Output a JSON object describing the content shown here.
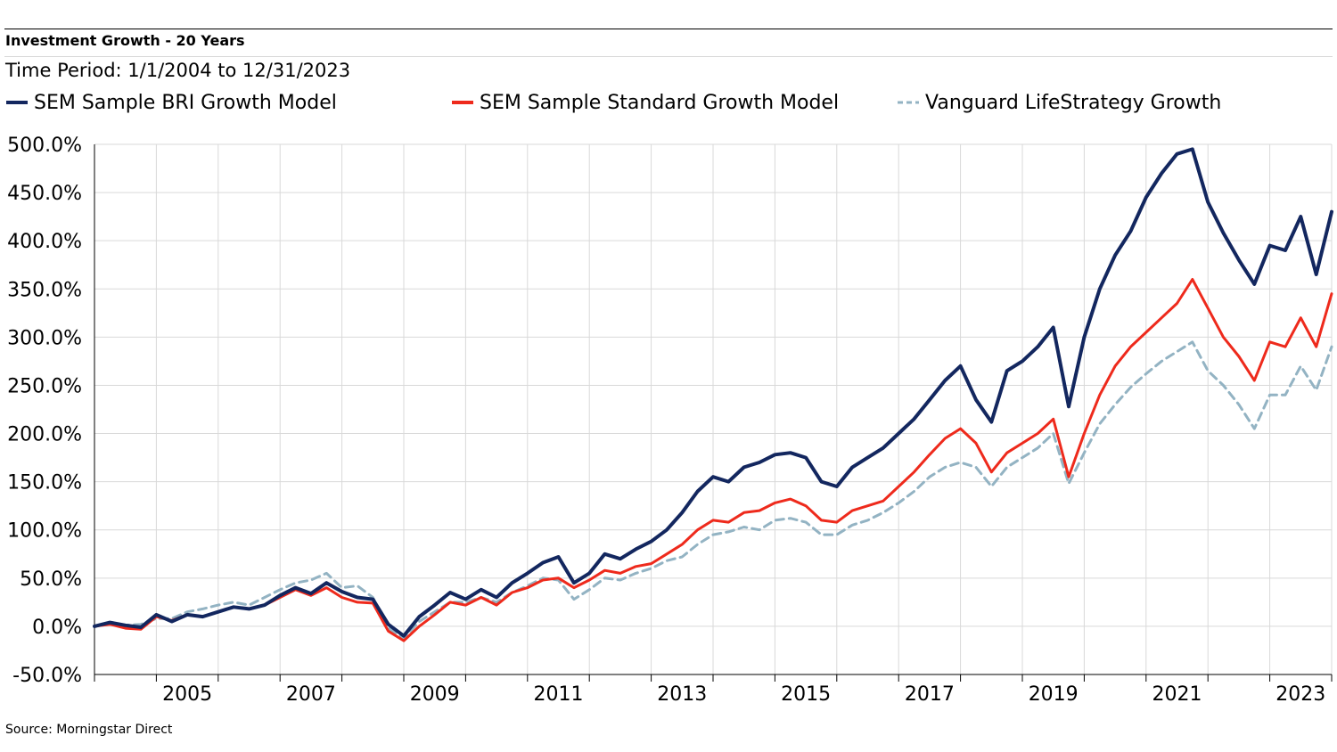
{
  "title": "Investment Growth - 20 Years",
  "subtitle": "Time Period: 1/1/2004 to 12/31/2023",
  "source": "Source: Morningstar Direct",
  "legend": [
    {
      "label": "SEM Sample BRI Growth Model",
      "color": "#13275f",
      "style": "solid"
    },
    {
      "label": "SEM Sample Standard Growth Model",
      "color": "#ee2a1c",
      "style": "solid"
    },
    {
      "label": "Vanguard LifeStrategy Growth",
      "color": "#93b3c3",
      "style": "dashed"
    }
  ],
  "chart_data": {
    "type": "line",
    "x_unit": "year",
    "xlim": [
      2004.0,
      2024.0
    ],
    "ylim": [
      -50,
      500
    ],
    "y_ticks": [
      -50,
      0,
      50,
      100,
      150,
      200,
      250,
      300,
      350,
      400,
      450,
      500
    ],
    "y_tick_labels": [
      "-50.0%",
      "0.0%",
      "50.0%",
      "100.0%",
      "150.0%",
      "200.0%",
      "250.0%",
      "300.0%",
      "350.0%",
      "400.0%",
      "450.0%",
      "500.0%"
    ],
    "x_ticks": [
      2005,
      2007,
      2009,
      2011,
      2013,
      2015,
      2017,
      2019,
      2021,
      2023
    ],
    "grid": true,
    "legend_position": "top",
    "series": [
      {
        "name": "SEM Sample BRI Growth Model",
        "color": "#13275f",
        "dash": false,
        "points": [
          [
            2004.0,
            0
          ],
          [
            2004.25,
            4
          ],
          [
            2004.5,
            1
          ],
          [
            2004.75,
            -1
          ],
          [
            2005.0,
            12
          ],
          [
            2005.25,
            5
          ],
          [
            2005.5,
            12
          ],
          [
            2005.75,
            10
          ],
          [
            2006.0,
            15
          ],
          [
            2006.25,
            20
          ],
          [
            2006.5,
            18
          ],
          [
            2006.75,
            22
          ],
          [
            2007.0,
            32
          ],
          [
            2007.25,
            40
          ],
          [
            2007.5,
            34
          ],
          [
            2007.75,
            45
          ],
          [
            2008.0,
            36
          ],
          [
            2008.25,
            30
          ],
          [
            2008.5,
            28
          ],
          [
            2008.75,
            2
          ],
          [
            2009.0,
            -10
          ],
          [
            2009.25,
            10
          ],
          [
            2009.5,
            22
          ],
          [
            2009.75,
            35
          ],
          [
            2010.0,
            28
          ],
          [
            2010.25,
            38
          ],
          [
            2010.5,
            30
          ],
          [
            2010.75,
            45
          ],
          [
            2011.0,
            55
          ],
          [
            2011.25,
            66
          ],
          [
            2011.5,
            72
          ],
          [
            2011.75,
            45
          ],
          [
            2012.0,
            55
          ],
          [
            2012.25,
            75
          ],
          [
            2012.5,
            70
          ],
          [
            2012.75,
            80
          ],
          [
            2013.0,
            88
          ],
          [
            2013.25,
            100
          ],
          [
            2013.5,
            118
          ],
          [
            2013.75,
            140
          ],
          [
            2014.0,
            155
          ],
          [
            2014.25,
            150
          ],
          [
            2014.5,
            165
          ],
          [
            2014.75,
            170
          ],
          [
            2015.0,
            178
          ],
          [
            2015.25,
            180
          ],
          [
            2015.5,
            175
          ],
          [
            2015.75,
            150
          ],
          [
            2016.0,
            145
          ],
          [
            2016.25,
            165
          ],
          [
            2016.5,
            175
          ],
          [
            2016.75,
            185
          ],
          [
            2017.0,
            200
          ],
          [
            2017.25,
            215
          ],
          [
            2017.5,
            235
          ],
          [
            2017.75,
            255
          ],
          [
            2018.0,
            270
          ],
          [
            2018.25,
            235
          ],
          [
            2018.5,
            212
          ],
          [
            2018.75,
            265
          ],
          [
            2019.0,
            275
          ],
          [
            2019.25,
            290
          ],
          [
            2019.5,
            310
          ],
          [
            2019.75,
            228
          ],
          [
            2020.0,
            300
          ],
          [
            2020.25,
            350
          ],
          [
            2020.5,
            385
          ],
          [
            2020.75,
            410
          ],
          [
            2021.0,
            445
          ],
          [
            2021.25,
            470
          ],
          [
            2021.5,
            490
          ],
          [
            2021.75,
            495
          ],
          [
            2022.0,
            440
          ],
          [
            2022.25,
            408
          ],
          [
            2022.5,
            380
          ],
          [
            2022.75,
            355
          ],
          [
            2023.0,
            395
          ],
          [
            2023.25,
            390
          ],
          [
            2023.5,
            425
          ],
          [
            2023.75,
            365
          ],
          [
            2024.0,
            430
          ]
        ]
      },
      {
        "name": "SEM Sample Standard Growth Model",
        "color": "#ee2a1c",
        "dash": false,
        "points": [
          [
            2004.0,
            0
          ],
          [
            2004.25,
            2
          ],
          [
            2004.5,
            -2
          ],
          [
            2004.75,
            -3
          ],
          [
            2005.0,
            10
          ],
          [
            2005.25,
            6
          ],
          [
            2005.5,
            12
          ],
          [
            2005.75,
            10
          ],
          [
            2006.0,
            15
          ],
          [
            2006.25,
            20
          ],
          [
            2006.5,
            18
          ],
          [
            2006.75,
            22
          ],
          [
            2007.0,
            30
          ],
          [
            2007.25,
            38
          ],
          [
            2007.5,
            32
          ],
          [
            2007.75,
            40
          ],
          [
            2008.0,
            30
          ],
          [
            2008.25,
            25
          ],
          [
            2008.5,
            24
          ],
          [
            2008.75,
            -5
          ],
          [
            2009.0,
            -15
          ],
          [
            2009.25,
            0
          ],
          [
            2009.5,
            12
          ],
          [
            2009.75,
            25
          ],
          [
            2010.0,
            22
          ],
          [
            2010.25,
            30
          ],
          [
            2010.5,
            22
          ],
          [
            2010.75,
            35
          ],
          [
            2011.0,
            40
          ],
          [
            2011.25,
            48
          ],
          [
            2011.5,
            50
          ],
          [
            2011.75,
            40
          ],
          [
            2012.0,
            48
          ],
          [
            2012.25,
            58
          ],
          [
            2012.5,
            55
          ],
          [
            2012.75,
            62
          ],
          [
            2013.0,
            65
          ],
          [
            2013.25,
            75
          ],
          [
            2013.5,
            85
          ],
          [
            2013.75,
            100
          ],
          [
            2014.0,
            110
          ],
          [
            2014.25,
            108
          ],
          [
            2014.5,
            118
          ],
          [
            2014.75,
            120
          ],
          [
            2015.0,
            128
          ],
          [
            2015.25,
            132
          ],
          [
            2015.5,
            125
          ],
          [
            2015.75,
            110
          ],
          [
            2016.0,
            108
          ],
          [
            2016.25,
            120
          ],
          [
            2016.5,
            125
          ],
          [
            2016.75,
            130
          ],
          [
            2017.0,
            145
          ],
          [
            2017.25,
            160
          ],
          [
            2017.5,
            178
          ],
          [
            2017.75,
            195
          ],
          [
            2018.0,
            205
          ],
          [
            2018.25,
            190
          ],
          [
            2018.5,
            160
          ],
          [
            2018.75,
            180
          ],
          [
            2019.0,
            190
          ],
          [
            2019.25,
            200
          ],
          [
            2019.5,
            215
          ],
          [
            2019.75,
            155
          ],
          [
            2020.0,
            200
          ],
          [
            2020.25,
            240
          ],
          [
            2020.5,
            270
          ],
          [
            2020.75,
            290
          ],
          [
            2021.0,
            305
          ],
          [
            2021.25,
            320
          ],
          [
            2021.5,
            335
          ],
          [
            2021.75,
            360
          ],
          [
            2022.0,
            330
          ],
          [
            2022.25,
            300
          ],
          [
            2022.5,
            280
          ],
          [
            2022.75,
            255
          ],
          [
            2023.0,
            295
          ],
          [
            2023.25,
            290
          ],
          [
            2023.5,
            320
          ],
          [
            2023.75,
            290
          ],
          [
            2024.0,
            345
          ]
        ]
      },
      {
        "name": "Vanguard LifeStrategy Growth",
        "color": "#93b3c3",
        "dash": true,
        "points": [
          [
            2004.0,
            0
          ],
          [
            2004.25,
            3
          ],
          [
            2004.5,
            1
          ],
          [
            2004.75,
            2
          ],
          [
            2005.0,
            8
          ],
          [
            2005.25,
            8
          ],
          [
            2005.5,
            15
          ],
          [
            2005.75,
            18
          ],
          [
            2006.0,
            22
          ],
          [
            2006.25,
            25
          ],
          [
            2006.5,
            22
          ],
          [
            2006.75,
            30
          ],
          [
            2007.0,
            38
          ],
          [
            2007.25,
            45
          ],
          [
            2007.5,
            48
          ],
          [
            2007.75,
            55
          ],
          [
            2008.0,
            40
          ],
          [
            2008.25,
            42
          ],
          [
            2008.5,
            30
          ],
          [
            2008.75,
            -2
          ],
          [
            2009.0,
            -12
          ],
          [
            2009.25,
            5
          ],
          [
            2009.5,
            15
          ],
          [
            2009.75,
            25
          ],
          [
            2010.0,
            25
          ],
          [
            2010.25,
            30
          ],
          [
            2010.5,
            25
          ],
          [
            2010.75,
            35
          ],
          [
            2011.0,
            42
          ],
          [
            2011.25,
            50
          ],
          [
            2011.5,
            48
          ],
          [
            2011.75,
            28
          ],
          [
            2012.0,
            38
          ],
          [
            2012.25,
            50
          ],
          [
            2012.5,
            48
          ],
          [
            2012.75,
            55
          ],
          [
            2013.0,
            60
          ],
          [
            2013.25,
            68
          ],
          [
            2013.5,
            72
          ],
          [
            2013.75,
            85
          ],
          [
            2014.0,
            95
          ],
          [
            2014.25,
            98
          ],
          [
            2014.5,
            103
          ],
          [
            2014.75,
            100
          ],
          [
            2015.0,
            110
          ],
          [
            2015.25,
            112
          ],
          [
            2015.5,
            108
          ],
          [
            2015.75,
            95
          ],
          [
            2016.0,
            95
          ],
          [
            2016.25,
            105
          ],
          [
            2016.5,
            110
          ],
          [
            2016.75,
            118
          ],
          [
            2017.0,
            128
          ],
          [
            2017.25,
            140
          ],
          [
            2017.5,
            155
          ],
          [
            2017.75,
            165
          ],
          [
            2018.0,
            170
          ],
          [
            2018.25,
            165
          ],
          [
            2018.5,
            145
          ],
          [
            2018.75,
            165
          ],
          [
            2019.0,
            175
          ],
          [
            2019.25,
            185
          ],
          [
            2019.5,
            200
          ],
          [
            2019.75,
            148
          ],
          [
            2020.0,
            180
          ],
          [
            2020.25,
            210
          ],
          [
            2020.5,
            230
          ],
          [
            2020.75,
            248
          ],
          [
            2021.0,
            262
          ],
          [
            2021.25,
            275
          ],
          [
            2021.5,
            285
          ],
          [
            2021.75,
            295
          ],
          [
            2022.0,
            265
          ],
          [
            2022.25,
            250
          ],
          [
            2022.5,
            230
          ],
          [
            2022.75,
            205
          ],
          [
            2023.0,
            240
          ],
          [
            2023.25,
            240
          ],
          [
            2023.5,
            270
          ],
          [
            2023.75,
            245
          ],
          [
            2024.0,
            290
          ]
        ]
      }
    ]
  }
}
